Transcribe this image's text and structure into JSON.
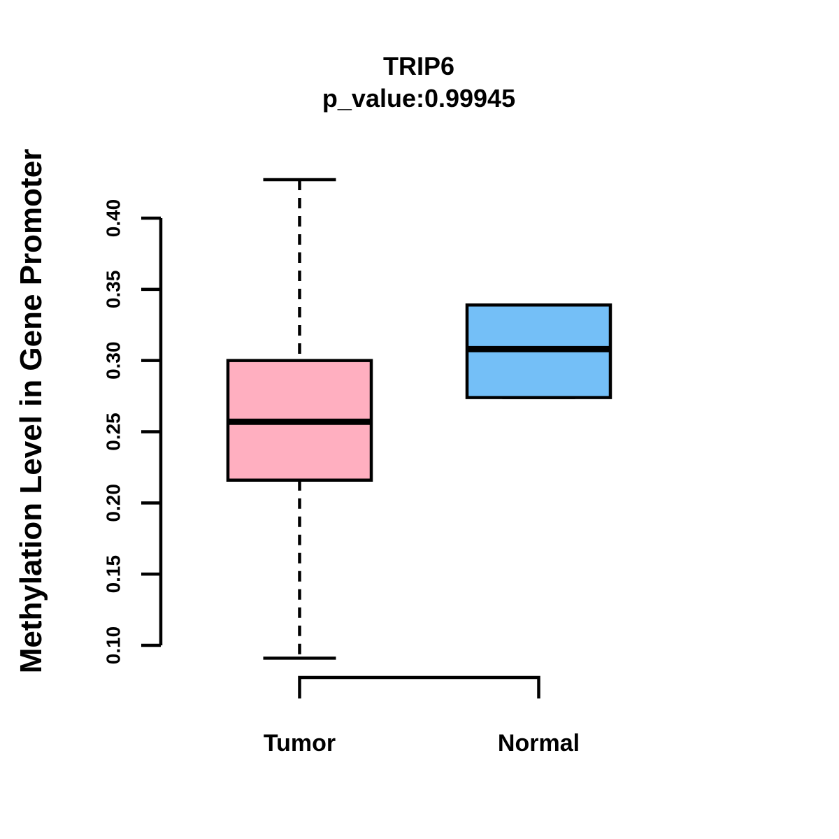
{
  "chart_data": {
    "type": "boxplot",
    "title": "TRIP6",
    "subtitle": "p_value:0.99945",
    "ylabel": "Methylation Level in Gene Promoter",
    "xlabel": "",
    "categories": [
      "Tumor",
      "Normal"
    ],
    "series": [
      {
        "name": "Tumor",
        "color": "#FFAFC0",
        "whisker_low": 0.091,
        "q1": 0.216,
        "median": 0.257,
        "q3": 0.3,
        "whisker_high": 0.427
      },
      {
        "name": "Normal",
        "color": "#74BFF7",
        "whisker_low": 0.274,
        "q1": 0.274,
        "median": 0.308,
        "q3": 0.339,
        "whisker_high": 0.339
      }
    ],
    "y_ticks": [
      0.1,
      0.15,
      0.2,
      0.25,
      0.3,
      0.35,
      0.4
    ],
    "ylim": [
      0.1,
      0.4
    ],
    "grid": false,
    "legend": "none",
    "colors": {
      "tumor_fill": "#FFAFC0",
      "normal_fill": "#74BFF7",
      "stroke": "#000000"
    }
  }
}
